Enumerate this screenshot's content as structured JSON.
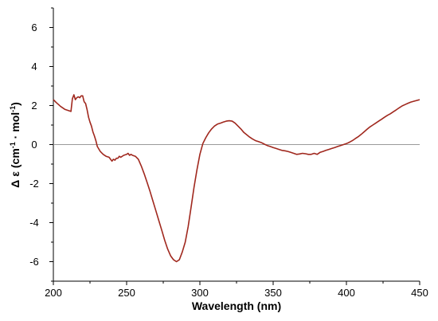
{
  "chart_data": {
    "type": "line",
    "xlabel": "Wavelength (nm)",
    "ylabel": {
      "delta": "Δ",
      "epsilon": "ε",
      "open": "(cm",
      "exp1": "-1",
      "dot": " · ",
      "mol": "mol",
      "exp2": "-1",
      "close": ")"
    },
    "xlim": [
      200,
      450
    ],
    "ylim": [
      -7,
      7
    ],
    "x_ticks": [
      200,
      250,
      300,
      350,
      400,
      450
    ],
    "y_ticks": [
      -6,
      -4,
      -2,
      0,
      2,
      4,
      6
    ],
    "x_tick_labels": [
      "200",
      "250",
      "300",
      "350",
      "400",
      "450"
    ],
    "y_tick_labels": [
      "-6",
      "-4",
      "-2",
      "0",
      "2",
      "4",
      "6"
    ],
    "zero_line": true,
    "grid": false,
    "colors": {
      "series": "#a0281e",
      "zero_line": "#9a9a9a",
      "axis": "#000000"
    },
    "series": [
      {
        "x": [
          200,
          202,
          205,
          208,
          210,
          212,
          213,
          214,
          215,
          216,
          217,
          218,
          219,
          220,
          221,
          222,
          223,
          224,
          225,
          226,
          227,
          228,
          229,
          230,
          232,
          234,
          236,
          238,
          239,
          240,
          241,
          242,
          243,
          244,
          245,
          246,
          248,
          250,
          251,
          252,
          253,
          254,
          256,
          258,
          260,
          262,
          264,
          266,
          268,
          270,
          272,
          274,
          276,
          278,
          280,
          282,
          284,
          286,
          288,
          290,
          292,
          294,
          296,
          298,
          300,
          302,
          304,
          306,
          308,
          310,
          312,
          314,
          316,
          318,
          320,
          322,
          324,
          326,
          328,
          330,
          332,
          334,
          336,
          338,
          340,
          342,
          344,
          346,
          348,
          350,
          352,
          354,
          356,
          358,
          360,
          362,
          364,
          366,
          368,
          370,
          372,
          374,
          376,
          378,
          380,
          382,
          384,
          386,
          388,
          390,
          392,
          394,
          396,
          398,
          400,
          402,
          404,
          406,
          408,
          410,
          412,
          414,
          416,
          418,
          420,
          422,
          424,
          426,
          428,
          430,
          432,
          434,
          436,
          438,
          440,
          442,
          444,
          446,
          448,
          450
        ],
        "y": [
          2.3,
          2.15,
          1.95,
          1.8,
          1.75,
          1.7,
          2.35,
          2.55,
          2.3,
          2.4,
          2.45,
          2.4,
          2.5,
          2.5,
          2.2,
          2.1,
          1.8,
          1.4,
          1.15,
          0.95,
          0.65,
          0.45,
          0.2,
          -0.1,
          -0.35,
          -0.5,
          -0.6,
          -0.65,
          -0.75,
          -0.85,
          -0.75,
          -0.8,
          -0.7,
          -0.7,
          -0.6,
          -0.65,
          -0.55,
          -0.5,
          -0.45,
          -0.55,
          -0.5,
          -0.55,
          -0.6,
          -0.75,
          -1.1,
          -1.5,
          -1.95,
          -2.4,
          -2.9,
          -3.4,
          -3.9,
          -4.4,
          -4.9,
          -5.35,
          -5.7,
          -5.9,
          -6.0,
          -5.9,
          -5.5,
          -5.0,
          -4.2,
          -3.2,
          -2.2,
          -1.3,
          -0.5,
          0.05,
          0.35,
          0.6,
          0.8,
          0.95,
          1.05,
          1.1,
          1.15,
          1.2,
          1.22,
          1.2,
          1.1,
          0.95,
          0.8,
          0.62,
          0.5,
          0.38,
          0.28,
          0.2,
          0.15,
          0.1,
          0.02,
          -0.05,
          -0.1,
          -0.15,
          -0.2,
          -0.25,
          -0.3,
          -0.32,
          -0.35,
          -0.4,
          -0.45,
          -0.5,
          -0.48,
          -0.45,
          -0.47,
          -0.5,
          -0.5,
          -0.45,
          -0.5,
          -0.4,
          -0.35,
          -0.3,
          -0.25,
          -0.2,
          -0.15,
          -0.1,
          -0.05,
          0.0,
          0.05,
          0.12,
          0.2,
          0.3,
          0.4,
          0.52,
          0.65,
          0.78,
          0.9,
          1.0,
          1.1,
          1.2,
          1.3,
          1.4,
          1.5,
          1.58,
          1.68,
          1.78,
          1.88,
          1.98,
          2.05,
          2.12,
          2.18,
          2.22,
          2.26,
          2.3
        ]
      }
    ]
  }
}
